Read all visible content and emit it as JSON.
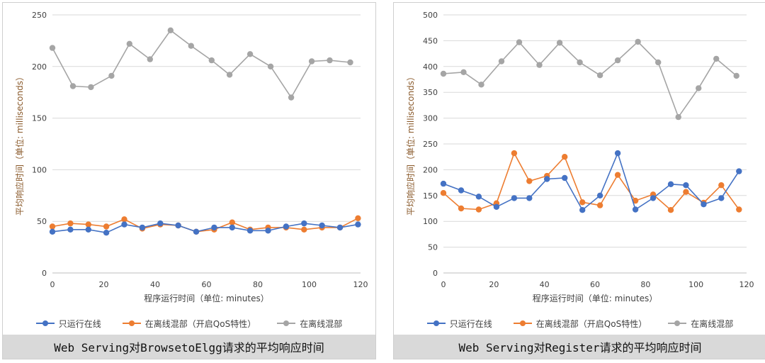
{
  "colors": {
    "blue": "#4472c4",
    "orange": "#ed7d31",
    "gray": "#a5a5a5"
  },
  "chart_data": [
    {
      "type": "line",
      "title": "Web Serving对BrowsetoElgg请求的平均响应时间",
      "xlabel": "程序运行时间（单位: minutes）",
      "ylabel": "平均响应时间（单位: milliseconds）",
      "xlim": [
        0,
        120
      ],
      "ylim": [
        0,
        250
      ],
      "xticks": [
        0,
        20,
        40,
        60,
        80,
        100,
        120
      ],
      "yticks": [
        0,
        50,
        100,
        150,
        200,
        250
      ],
      "grid": true,
      "legend_position": "bottom",
      "x": [
        0,
        7,
        14,
        21,
        28,
        35,
        42,
        49,
        56,
        63,
        70,
        77,
        84,
        91,
        98,
        105,
        112,
        119
      ],
      "series": [
        {
          "name": "只运行在线",
          "color_key": "blue",
          "values": [
            40,
            42,
            42,
            39,
            47,
            44,
            48,
            46,
            40,
            44,
            44,
            41,
            41,
            45,
            48,
            46,
            44,
            47
          ]
        },
        {
          "name": "在离线混部（开启QoS特性）",
          "color_key": "orange",
          "values": [
            45,
            48,
            47,
            45,
            52,
            43,
            47,
            46,
            40,
            42,
            49,
            42,
            44,
            44,
            42,
            44,
            44,
            53
          ]
        },
        {
          "name": "在离线混部",
          "color_key": "gray",
          "values": [
            218,
            181,
            180,
            191,
            222,
            207,
            235,
            220,
            206,
            192,
            212,
            200,
            170,
            205,
            206,
            204,
            null,
            null
          ]
        }
      ],
      "gray_x": [
        0,
        8,
        15,
        23,
        30,
        38,
        46,
        54,
        62,
        69,
        77,
        85,
        93,
        101,
        108,
        116
      ]
    },
    {
      "type": "line",
      "title": "Web Serving对Register请求的平均响应时间",
      "xlabel": "程序运行时间（单位: minutes）",
      "ylabel": "平均响应时间（单位: milliseconds）",
      "xlim": [
        0,
        120
      ],
      "ylim": [
        0,
        500
      ],
      "xticks": [
        0,
        20,
        40,
        60,
        80,
        100,
        120
      ],
      "yticks": [
        0,
        50,
        100,
        150,
        200,
        250,
        300,
        350,
        400,
        450,
        500
      ],
      "grid": true,
      "legend_position": "bottom",
      "x": [
        0,
        7,
        14,
        21,
        28,
        34,
        41,
        48,
        55,
        62,
        69,
        76,
        83,
        90,
        96,
        103,
        110,
        117
      ],
      "series": [
        {
          "name": "只运行在线",
          "color_key": "blue",
          "values": [
            173,
            160,
            148,
            128,
            145,
            145,
            182,
            184,
            122,
            150,
            232,
            123,
            145,
            172,
            170,
            133,
            145,
            197
          ]
        },
        {
          "name": "在离线混部（开启QoS特性）",
          "color_key": "orange",
          "values": [
            155,
            125,
            123,
            135,
            232,
            178,
            188,
            225,
            137,
            131,
            190,
            140,
            152,
            122,
            157,
            136,
            170,
            123
          ]
        },
        {
          "name": "在离线混部",
          "color_key": "gray",
          "values": [
            386,
            389,
            365,
            410,
            447,
            403,
            446,
            408,
            383,
            412,
            448,
            408,
            302,
            358,
            415,
            382,
            null,
            null
          ]
        }
      ],
      "gray_x": [
        0,
        8,
        15,
        23,
        30,
        38,
        46,
        54,
        62,
        69,
        77,
        85,
        93,
        101,
        108,
        116
      ]
    }
  ]
}
